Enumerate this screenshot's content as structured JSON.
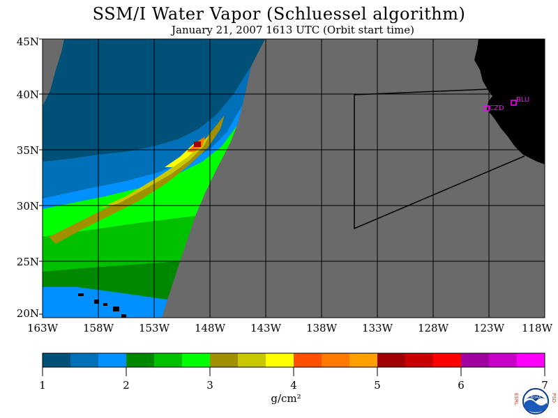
{
  "title": "SSM/I Water Vapor (Schluessel algorithm)",
  "subtitle": "January 21, 2007  1613 UTC  (Orbit start time)",
  "map": {
    "lat_labels": [
      "45N",
      "40N",
      "35N",
      "30N",
      "25N",
      "20N"
    ],
    "lon_labels": [
      "163W",
      "158W",
      "153W",
      "148W",
      "143W",
      "138W",
      "133W",
      "128W",
      "123W",
      "118W"
    ],
    "stations": [
      "CZD",
      "BLU"
    ],
    "land_color": "#000000",
    "nodata_color": "#6a6a6a"
  },
  "colorbar": {
    "colors": [
      "#005078",
      "#0070b8",
      "#0090ff",
      "#008800",
      "#00c000",
      "#00ff00",
      "#a09000",
      "#c8c800",
      "#ffff00",
      "#ff5000",
      "#ff7800",
      "#ffa000",
      "#a00000",
      "#c80000",
      "#ff0000",
      "#a000a0",
      "#c800c8",
      "#ff00ff"
    ],
    "tick_labels": [
      "1",
      "2",
      "3",
      "4",
      "5",
      "6",
      "7"
    ],
    "units": "g/cm²"
  },
  "logo": {
    "left_text": "ESRL",
    "right_text": "PSD",
    "center_text": "NOAA"
  }
}
